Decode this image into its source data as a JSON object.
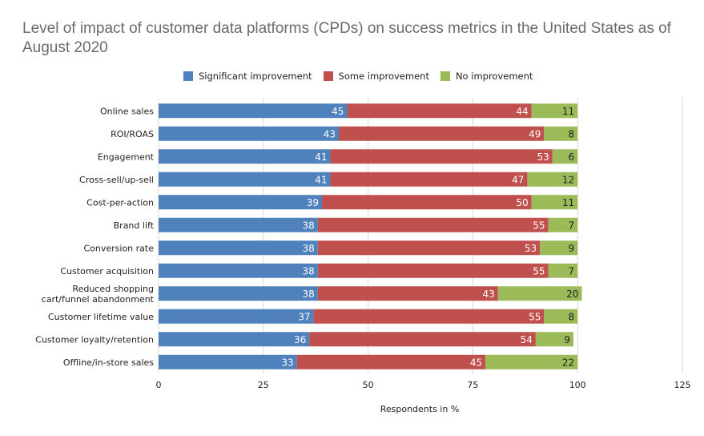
{
  "chart_data": {
    "type": "bar",
    "orientation": "horizontal",
    "stacked": true,
    "title": "Level of impact of customer data platforms (CPDs) on success metrics in the United States as of August 2020",
    "xlabel": "Respondents in %",
    "ylabel": "",
    "xlim": [
      0,
      125
    ],
    "xticks": [
      "0",
      "25",
      "50",
      "75",
      "100",
      "125"
    ],
    "grid": true,
    "legend_position": "top",
    "categories": [
      "Online sales",
      "ROI/ROAS",
      "Engagement",
      "Cross-sell/up-sell",
      "Cost-per-action",
      "Brand lift",
      "Conversion rate",
      "Customer acquisition",
      "Reduced shopping cart/funnel abandonment",
      "Customer lifetime value",
      "Customer loyalty/retention",
      "Offline/in-store sales"
    ],
    "category_lines": [
      [
        "Online sales"
      ],
      [
        "ROI/ROAS"
      ],
      [
        "Engagement"
      ],
      [
        "Cross-sell/up-sell"
      ],
      [
        "Cost-per-action"
      ],
      [
        "Brand lift"
      ],
      [
        "Conversion rate"
      ],
      [
        "Customer acquisition"
      ],
      [
        "Reduced shopping",
        "cart/funnel abandonment"
      ],
      [
        "Customer lifetime value"
      ],
      [
        "Customer loyalty/retention"
      ],
      [
        "Offline/in-store sales"
      ]
    ],
    "series": [
      {
        "name": "Significant improvement",
        "color": "#4f81bd",
        "label_color": "#ffffff",
        "values": [
          45,
          43,
          41,
          41,
          39,
          38,
          38,
          38,
          38,
          37,
          36,
          33
        ]
      },
      {
        "name": "Some improvement",
        "color": "#c0504d",
        "label_color": "#ffffff",
        "values": [
          44,
          49,
          53,
          47,
          50,
          55,
          53,
          55,
          43,
          55,
          54,
          45
        ]
      },
      {
        "name": "No improvement",
        "color": "#9bbb59",
        "label_color": "#222222",
        "values": [
          11,
          8,
          6,
          12,
          11,
          7,
          9,
          7,
          20,
          8,
          9,
          22
        ]
      }
    ]
  }
}
